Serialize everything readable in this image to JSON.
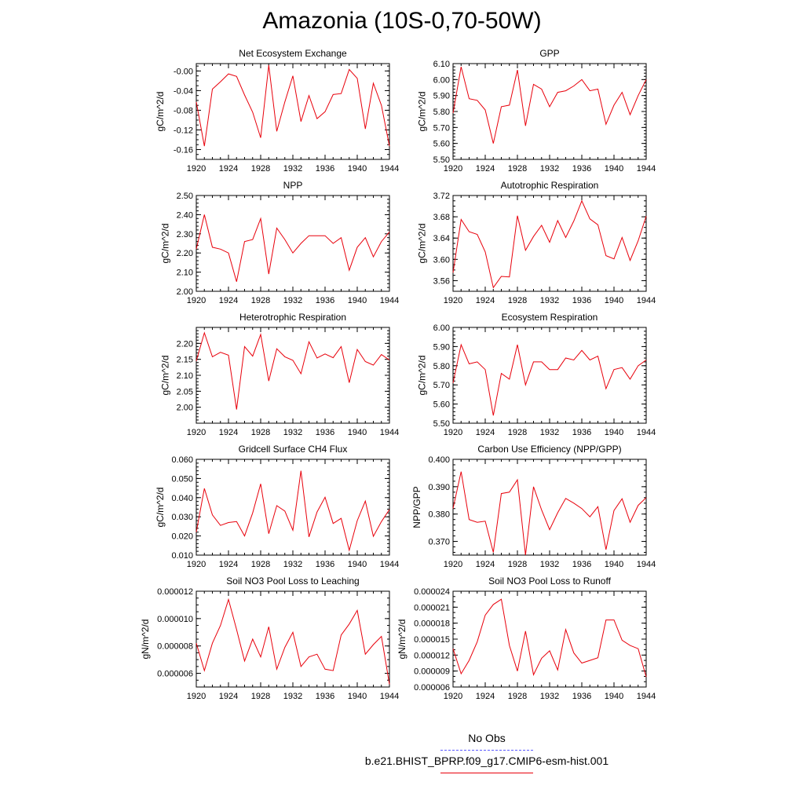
{
  "title": "Amazonia (10S-0,70-50W)",
  "chart_data": [
    {
      "type": "line",
      "title": "Net Ecosystem Exchange",
      "ylabel": "gC/m^2/d",
      "xlabel": "",
      "xlim": [
        1920,
        1944
      ],
      "x_ticks": [
        "1920",
        "1924",
        "1928",
        "1932",
        "1936",
        "1940",
        "1944"
      ],
      "ylim": [
        -0.18,
        0.015
      ],
      "y_ticks": [
        -0.16,
        -0.12,
        -0.08,
        -0.04,
        0.0
      ],
      "y_tick_labels": [
        "-0.16",
        "-0.12",
        "-0.08",
        "-0.04",
        "-0.00"
      ],
      "y_minor_step": 0.01,
      "series": [
        {
          "color": "#e8000b",
          "x": [
            1920,
            1921,
            1922,
            1923,
            1924,
            1925,
            1926,
            1927,
            1928,
            1929,
            1930,
            1931,
            1932,
            1933,
            1934,
            1935,
            1936,
            1937,
            1938,
            1939,
            1940,
            1941,
            1942,
            1943,
            1944
          ],
          "values": [
            -0.063,
            -0.153,
            -0.037,
            -0.022,
            -0.006,
            -0.011,
            -0.049,
            -0.084,
            -0.136,
            0.012,
            -0.123,
            -0.063,
            -0.01,
            -0.103,
            -0.05,
            -0.097,
            -0.083,
            -0.048,
            -0.046,
            0.003,
            -0.015,
            -0.118,
            -0.025,
            -0.07,
            -0.153
          ]
        }
      ]
    },
    {
      "type": "line",
      "title": "GPP",
      "ylabel": "gC/m^2/d",
      "xlabel": "",
      "xlim": [
        1920,
        1944
      ],
      "x_ticks": [
        "1920",
        "1924",
        "1928",
        "1932",
        "1936",
        "1940",
        "1944"
      ],
      "ylim": [
        5.5,
        6.1
      ],
      "y_ticks": [
        5.5,
        5.6,
        5.7,
        5.8,
        5.9,
        6.0,
        6.1
      ],
      "y_tick_labels": [
        "5.50",
        "5.60",
        "5.70",
        "5.80",
        "5.90",
        "6.00",
        "6.10"
      ],
      "y_minor_step": 0.02,
      "series": [
        {
          "color": "#e8000b",
          "x": [
            1920,
            1921,
            1922,
            1923,
            1924,
            1925,
            1926,
            1927,
            1928,
            1929,
            1930,
            1931,
            1932,
            1933,
            1934,
            1935,
            1936,
            1937,
            1938,
            1939,
            1940,
            1941,
            1942,
            1943,
            1944
          ],
          "values": [
            5.79,
            6.08,
            5.88,
            5.87,
            5.81,
            5.6,
            5.83,
            5.84,
            6.06,
            5.71,
            5.97,
            5.94,
            5.83,
            5.92,
            5.93,
            5.96,
            6.0,
            5.93,
            5.94,
            5.72,
            5.84,
            5.92,
            5.78,
            5.9,
            6.0
          ]
        }
      ]
    },
    {
      "type": "line",
      "title": "NPP",
      "ylabel": "gC/m^2/d",
      "xlabel": "",
      "xlim": [
        1920,
        1944
      ],
      "x_ticks": [
        "1920",
        "1924",
        "1928",
        "1932",
        "1936",
        "1940",
        "1944"
      ],
      "ylim": [
        2.0,
        2.5
      ],
      "y_ticks": [
        2.0,
        2.1,
        2.2,
        2.3,
        2.4,
        2.5
      ],
      "y_tick_labels": [
        "2.00",
        "2.10",
        "2.20",
        "2.30",
        "2.40",
        "2.50"
      ],
      "y_minor_step": 0.02,
      "series": [
        {
          "color": "#e8000b",
          "x": [
            1920,
            1921,
            1922,
            1923,
            1924,
            1925,
            1926,
            1927,
            1928,
            1929,
            1930,
            1931,
            1932,
            1933,
            1934,
            1935,
            1936,
            1937,
            1938,
            1939,
            1940,
            1941,
            1942,
            1943,
            1944
          ],
          "values": [
            2.22,
            2.4,
            2.23,
            2.22,
            2.2,
            2.05,
            2.26,
            2.27,
            2.38,
            2.09,
            2.33,
            2.27,
            2.2,
            2.25,
            2.29,
            2.29,
            2.29,
            2.25,
            2.28,
            2.11,
            2.23,
            2.28,
            2.18,
            2.26,
            2.31
          ]
        }
      ]
    },
    {
      "type": "line",
      "title": "Autotrophic Respiration",
      "ylabel": "gC/m^2/d",
      "xlabel": "",
      "xlim": [
        1920,
        1944
      ],
      "x_ticks": [
        "1920",
        "1924",
        "1928",
        "1932",
        "1936",
        "1940",
        "1944"
      ],
      "ylim": [
        3.54,
        3.72
      ],
      "y_ticks": [
        3.56,
        3.6,
        3.64,
        3.68,
        3.72
      ],
      "y_tick_labels": [
        "3.56",
        "3.60",
        "3.64",
        "3.68",
        "3.72"
      ],
      "y_minor_step": 0.01,
      "series": [
        {
          "color": "#e8000b",
          "x": [
            1920,
            1921,
            1922,
            1923,
            1924,
            1925,
            1926,
            1927,
            1928,
            1929,
            1930,
            1931,
            1932,
            1933,
            1934,
            1935,
            1936,
            1937,
            1938,
            1939,
            1940,
            1941,
            1942,
            1943,
            1944
          ],
          "values": [
            3.575,
            3.675,
            3.652,
            3.647,
            3.614,
            3.547,
            3.568,
            3.567,
            3.682,
            3.617,
            3.643,
            3.664,
            3.632,
            3.673,
            3.641,
            3.672,
            3.71,
            3.676,
            3.665,
            3.607,
            3.601,
            3.641,
            3.598,
            3.635,
            3.681
          ]
        }
      ]
    },
    {
      "type": "line",
      "title": "Heterotrophic Respiration",
      "ylabel": "gC/m^2/d",
      "xlabel": "",
      "xlim": [
        1920,
        1944
      ],
      "x_ticks": [
        "1920",
        "1924",
        "1928",
        "1932",
        "1936",
        "1940",
        "1944"
      ],
      "ylim": [
        1.95,
        2.25
      ],
      "y_ticks": [
        2.0,
        2.05,
        2.1,
        2.15,
        2.2
      ],
      "y_tick_labels": [
        "2.00",
        "2.05",
        "2.10",
        "2.15",
        "2.20"
      ],
      "y_minor_step": 0.01,
      "series": [
        {
          "color": "#e8000b",
          "x": [
            1920,
            1921,
            1922,
            1923,
            1924,
            1925,
            1926,
            1927,
            1928,
            1929,
            1930,
            1931,
            1932,
            1933,
            1934,
            1935,
            1936,
            1937,
            1938,
            1939,
            1940,
            1941,
            1942,
            1943,
            1944
          ],
          "values": [
            2.145,
            2.233,
            2.158,
            2.172,
            2.163,
            1.993,
            2.19,
            2.16,
            2.228,
            2.082,
            2.183,
            2.158,
            2.147,
            2.105,
            2.205,
            2.154,
            2.167,
            2.155,
            2.19,
            2.077,
            2.181,
            2.143,
            2.132,
            2.165,
            2.148
          ]
        }
      ]
    },
    {
      "type": "line",
      "title": "Ecosystem Respiration",
      "ylabel": "gC/m^2/d",
      "xlabel": "",
      "xlim": [
        1920,
        1944
      ],
      "x_ticks": [
        "1920",
        "1924",
        "1928",
        "1932",
        "1936",
        "1940",
        "1944"
      ],
      "ylim": [
        5.5,
        6.0
      ],
      "y_ticks": [
        5.5,
        5.6,
        5.7,
        5.8,
        5.9,
        6.0
      ],
      "y_tick_labels": [
        "5.50",
        "5.60",
        "5.70",
        "5.80",
        "5.90",
        "6.00"
      ],
      "y_minor_step": 0.02,
      "series": [
        {
          "color": "#e8000b",
          "x": [
            1920,
            1921,
            1922,
            1923,
            1924,
            1925,
            1926,
            1927,
            1928,
            1929,
            1930,
            1931,
            1932,
            1933,
            1934,
            1935,
            1936,
            1937,
            1938,
            1939,
            1940,
            1941,
            1942,
            1943,
            1944
          ],
          "values": [
            5.71,
            5.91,
            5.81,
            5.82,
            5.78,
            5.54,
            5.76,
            5.73,
            5.91,
            5.7,
            5.82,
            5.82,
            5.78,
            5.78,
            5.84,
            5.83,
            5.88,
            5.83,
            5.85,
            5.68,
            5.78,
            5.79,
            5.73,
            5.8,
            5.83
          ]
        }
      ]
    },
    {
      "type": "line",
      "title": "Gridcell Surface CH4 Flux",
      "ylabel": "gC/m^2/d",
      "xlabel": "",
      "xlim": [
        1920,
        1944
      ],
      "x_ticks": [
        "1920",
        "1924",
        "1928",
        "1932",
        "1936",
        "1940",
        "1944"
      ],
      "ylim": [
        0.01,
        0.06
      ],
      "y_ticks": [
        0.01,
        0.02,
        0.03,
        0.04,
        0.05,
        0.06
      ],
      "y_tick_labels": [
        "0.010",
        "0.020",
        "0.030",
        "0.040",
        "0.050",
        "0.060"
      ],
      "y_minor_step": 0.002,
      "series": [
        {
          "color": "#e8000b",
          "x": [
            1920,
            1921,
            1922,
            1923,
            1924,
            1925,
            1926,
            1927,
            1928,
            1929,
            1930,
            1931,
            1932,
            1933,
            1934,
            1935,
            1936,
            1937,
            1938,
            1939,
            1940,
            1941,
            1942,
            1943,
            1944
          ],
          "values": [
            0.022,
            0.0448,
            0.031,
            0.0255,
            0.027,
            0.0275,
            0.02,
            0.032,
            0.0472,
            0.0212,
            0.0358,
            0.033,
            0.023,
            0.054,
            0.0195,
            0.0325,
            0.0402,
            0.0265,
            0.0292,
            0.0125,
            0.028,
            0.0382,
            0.0198,
            0.0275,
            0.0338
          ]
        }
      ]
    },
    {
      "type": "line",
      "title": "Carbon Use Efficiency (NPP/GPP)",
      "ylabel": "NPP/GPP",
      "xlabel": "",
      "xlim": [
        1920,
        1944
      ],
      "x_ticks": [
        "1920",
        "1924",
        "1928",
        "1932",
        "1936",
        "1940",
        "1944"
      ],
      "ylim": [
        0.365,
        0.4
      ],
      "y_ticks": [
        0.37,
        0.38,
        0.39,
        0.4
      ],
      "y_tick_labels": [
        "0.370",
        "0.380",
        "0.390",
        "0.400"
      ],
      "y_minor_step": 0.002,
      "series": [
        {
          "color": "#e8000b",
          "x": [
            1920,
            1921,
            1922,
            1923,
            1924,
            1925,
            1926,
            1927,
            1928,
            1929,
            1930,
            1931,
            1932,
            1933,
            1934,
            1935,
            1936,
            1937,
            1938,
            1939,
            1940,
            1941,
            1942,
            1943,
            1944
          ],
          "values": [
            0.382,
            0.3955,
            0.378,
            0.377,
            0.3774,
            0.366,
            0.3875,
            0.388,
            0.3925,
            0.365,
            0.39,
            0.3815,
            0.3743,
            0.3805,
            0.3857,
            0.384,
            0.382,
            0.379,
            0.3827,
            0.367,
            0.3813,
            0.3856,
            0.377,
            0.3832,
            0.386
          ]
        }
      ]
    },
    {
      "type": "line",
      "title": "Soil NO3 Pool Loss to Leaching",
      "ylabel": "gN/m^2/d",
      "xlabel": "",
      "xlim": [
        1920,
        1944
      ],
      "x_ticks": [
        "1920",
        "1924",
        "1928",
        "1932",
        "1936",
        "1940",
        "1944"
      ],
      "ylim": [
        5e-06,
        1.2e-05
      ],
      "y_ticks": [
        6e-06,
        8e-06,
        1e-05,
        1.2e-05
      ],
      "y_tick_labels": [
        "0.000006",
        "0.000008",
        "0.000010",
        "0.000012"
      ],
      "y_minor_step": 5e-07,
      "series": [
        {
          "color": "#e8000b",
          "x": [
            1920,
            1921,
            1922,
            1923,
            1924,
            1925,
            1926,
            1927,
            1928,
            1929,
            1930,
            1931,
            1932,
            1933,
            1934,
            1935,
            1936,
            1937,
            1938,
            1939,
            1940,
            1941,
            1942,
            1943,
            1944
          ],
          "values": [
            8.2e-06,
            6.2e-06,
            8.2e-06,
            9.5e-06,
            1.14e-05,
            9.2e-06,
            6.9e-06,
            8.5e-06,
            7.2e-06,
            9.4e-06,
            6.3e-06,
            7.9e-06,
            9e-06,
            6.5e-06,
            7.2e-06,
            7.4e-06,
            6.3e-06,
            6.2e-06,
            8.8e-06,
            9.6e-06,
            1.06e-05,
            7.4e-06,
            8.1e-06,
            8.7e-06,
            5.2e-06
          ]
        }
      ]
    },
    {
      "type": "line",
      "title": "Soil NO3 Pool Loss to Runoff",
      "ylabel": "gN/m^2/d",
      "xlabel": "",
      "xlim": [
        1920,
        1944
      ],
      "x_ticks": [
        "1920",
        "1924",
        "1928",
        "1932",
        "1936",
        "1940",
        "1944"
      ],
      "ylim": [
        6e-06,
        2.4e-05
      ],
      "y_ticks": [
        6e-06,
        9e-06,
        1.2e-05,
        1.5e-05,
        1.8e-05,
        2.1e-05,
        2.4e-05
      ],
      "y_tick_labels": [
        "0.000006",
        "0.000009",
        "0.000012",
        "0.000015",
        "0.000018",
        "0.000021",
        "0.000024"
      ],
      "y_minor_step": 1e-06,
      "series": [
        {
          "color": "#e8000b",
          "x": [
            1920,
            1921,
            1922,
            1923,
            1924,
            1925,
            1926,
            1927,
            1928,
            1929,
            1930,
            1931,
            1932,
            1933,
            1934,
            1935,
            1936,
            1937,
            1938,
            1939,
            1940,
            1941,
            1942,
            1943,
            1944
          ],
          "values": [
            1.32e-05,
            8.5e-06,
            1.1e-05,
            1.45e-05,
            1.95e-05,
            2.15e-05,
            2.25e-05,
            1.38e-05,
            9e-06,
            1.65e-05,
            8.3e-06,
            1.14e-05,
            1.28e-05,
            9.2e-06,
            1.68e-05,
            1.24e-05,
            1.05e-05,
            1.1e-05,
            1.15e-05,
            1.86e-05,
            1.86e-05,
            1.48e-05,
            1.38e-05,
            1.32e-05,
            7.9e-06
          ]
        }
      ]
    }
  ],
  "legend": {
    "obs_label": "No Obs",
    "obs_color": "#5a5aff",
    "model_label": "b.e21.BHIST_BPRP.f09_g17.CMIP6-esm-hist.001",
    "model_color": "#e8000b"
  }
}
